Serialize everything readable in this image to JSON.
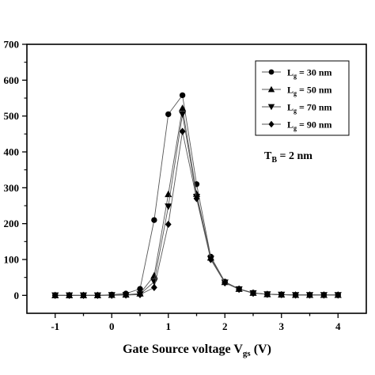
{
  "chart_data": {
    "type": "line",
    "title": "",
    "xlabel": "Gate Source voltage V",
    "xlabel_sub": "gs",
    "xlabel_unit": " (V)",
    "ylabel": "",
    "xlim": [
      -1.5,
      4.5
    ],
    "ylim": [
      -50,
      700
    ],
    "x_ticks": [
      -1,
      -0.5,
      0,
      0.5,
      1,
      1.5,
      2,
      2.5,
      3,
      3.5,
      4
    ],
    "x_tick_labels": [
      "-1",
      "",
      "0",
      "",
      "1",
      "",
      "2",
      "",
      "3",
      "",
      "4"
    ],
    "y_ticks": [
      0,
      100,
      200,
      300,
      400,
      500,
      600,
      700
    ],
    "y_tick_labels": [
      "0",
      "100",
      "200",
      "300",
      "400",
      "500",
      "600",
      "700"
    ],
    "grid": false,
    "legend_position": "top-right",
    "x": [
      -1,
      -0.75,
      -0.5,
      -0.25,
      0,
      0.25,
      0.5,
      0.75,
      1,
      1.25,
      1.5,
      1.75,
      2,
      2.25,
      2.5,
      2.75,
      3,
      3.25,
      3.5,
      3.75,
      4
    ],
    "series": [
      {
        "name_main": "L",
        "name_sub": "g",
        "name_rest": " = 30 nm",
        "marker": "circle",
        "values": [
          0,
          0,
          0,
          0,
          2,
          5,
          18,
          210,
          505,
          558,
          310,
          108,
          38,
          18,
          7,
          3,
          2,
          1,
          1,
          1,
          1
        ]
      },
      {
        "name_main": "L",
        "name_sub": "g",
        "name_rest": " = 50 nm",
        "marker": "triangle-up",
        "values": [
          0,
          0,
          0,
          0,
          1,
          2,
          5,
          55,
          282,
          522,
          283,
          105,
          37,
          18,
          7,
          3,
          2,
          1,
          1,
          1,
          1
        ]
      },
      {
        "name_main": "L",
        "name_sub": "g",
        "name_rest": " = 70 nm",
        "marker": "triangle-down",
        "values": [
          0,
          0,
          0,
          0,
          1,
          1,
          3,
          38,
          248,
          505,
          275,
          102,
          36,
          17,
          6,
          3,
          2,
          1,
          1,
          1,
          1
        ]
      },
      {
        "name_main": "L",
        "name_sub": "g",
        "name_rest": " = 90 nm",
        "marker": "diamond",
        "values": [
          0,
          0,
          0,
          0,
          0,
          1,
          2,
          22,
          198,
          457,
          270,
          100,
          35,
          17,
          6,
          3,
          2,
          1,
          1,
          1,
          1
        ]
      }
    ],
    "annotation": {
      "main": "T",
      "sub": "B",
      "rest": " = 2 nm"
    }
  }
}
